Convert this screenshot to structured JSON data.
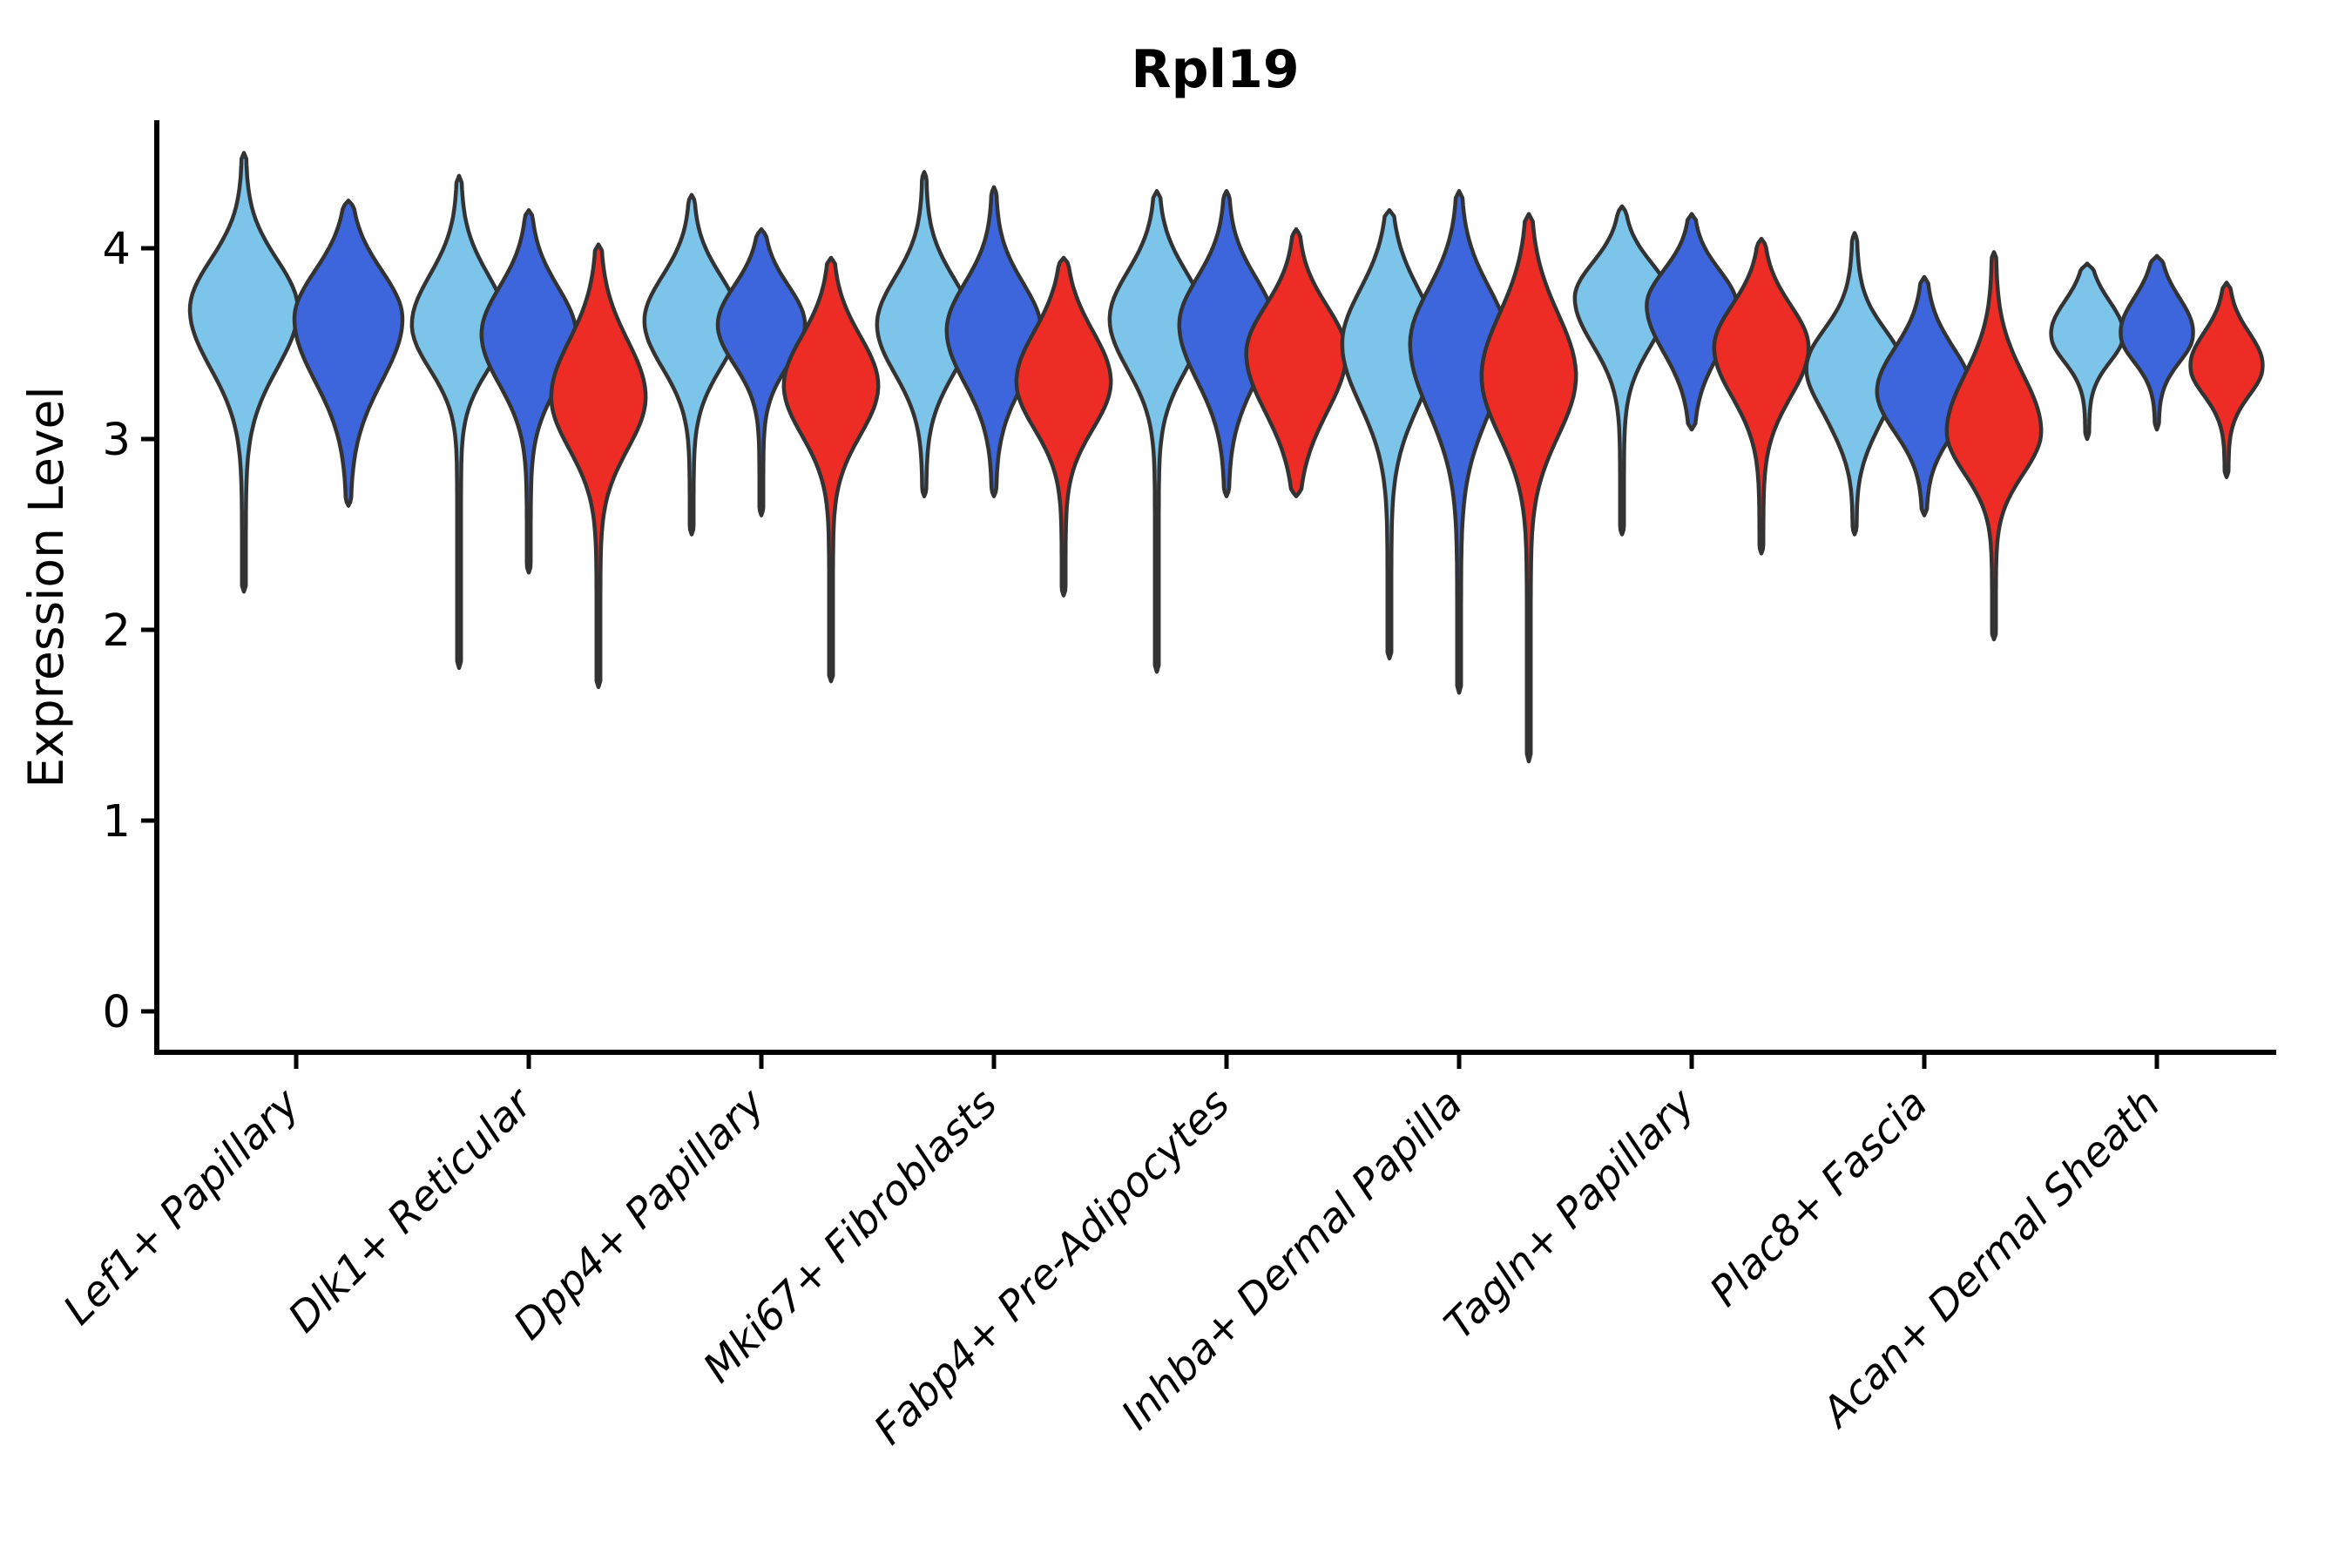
{
  "chart_data": {
    "type": "violin",
    "title": "Rpl19",
    "xlabel": "",
    "ylabel": "Expression Level",
    "yticks": [
      0,
      1,
      2,
      3,
      4
    ],
    "ylim": [
      -0.25,
      4.8
    ],
    "grid": false,
    "legend": "none",
    "background": "#ffffff",
    "palette": {
      "light_blue": "#7DC4EA",
      "dark_blue": "#3D66DC",
      "red": "#EE2C26",
      "outline": "#333333",
      "axis": "#000000"
    },
    "categories": [
      "Lef1+ Papillary",
      "Dlk1+ Reticular",
      "Dpp4+ Papillary",
      "Mki67+ Fibroblasts",
      "Fabp4+ Pre-Adipocytes",
      "Inhba+ Dermal Papilla",
      "Tagln+ Papillary",
      "Plac8+ Fascia",
      "Acan+ Dermal Sheath"
    ],
    "groups": [
      {
        "category": "Lef1+ Papillary",
        "violins": [
          {
            "color": "light_blue",
            "max": 4.5,
            "body_top": 4.1,
            "mode": 3.68,
            "body_bottom": 3.18,
            "min": 2.2,
            "width": 1.15,
            "wave": 0
          },
          {
            "color": "dark_blue",
            "max": 4.25,
            "body_top": 4.04,
            "mode": 3.63,
            "body_bottom": 3.1,
            "min": 2.65,
            "width": 1.15,
            "wave": 0
          }
        ]
      },
      {
        "category": "Dlk1+ Reticular",
        "violins": [
          {
            "color": "light_blue",
            "max": 4.38,
            "body_top": 4.02,
            "mode": 3.6,
            "body_bottom": 3.22,
            "min": 1.8,
            "width": 1.0,
            "wave": 0
          },
          {
            "color": "dark_blue",
            "max": 4.2,
            "body_top": 3.95,
            "mode": 3.55,
            "body_bottom": 3.12,
            "min": 2.3,
            "width": 1.0,
            "wave": 0
          },
          {
            "color": "red",
            "max": 4.02,
            "body_top": 3.7,
            "mode": 3.22,
            "body_bottom": 2.78,
            "min": 1.7,
            "width": 1.0,
            "wave": 0
          }
        ]
      },
      {
        "category": "Dpp4+ Papillary",
        "violins": [
          {
            "color": "light_blue",
            "max": 4.28,
            "body_top": 4.0,
            "mode": 3.62,
            "body_bottom": 3.22,
            "min": 2.5,
            "width": 1.0,
            "wave": 0
          },
          {
            "color": "dark_blue",
            "max": 4.1,
            "body_top": 3.93,
            "mode": 3.6,
            "body_bottom": 3.26,
            "min": 2.6,
            "width": 0.92,
            "wave": 0
          },
          {
            "color": "red",
            "max": 3.95,
            "body_top": 3.7,
            "mode": 3.28,
            "body_bottom": 2.86,
            "min": 1.73,
            "width": 1.0,
            "wave": 0
          }
        ]
      },
      {
        "category": "Mki67+ Fibroblasts",
        "violins": [
          {
            "color": "light_blue",
            "max": 4.4,
            "body_top": 4.0,
            "mode": 3.6,
            "body_bottom": 3.18,
            "min": 2.7,
            "width": 1.0,
            "wave": 0
          },
          {
            "color": "dark_blue",
            "max": 4.32,
            "body_top": 3.97,
            "mode": 3.57,
            "body_bottom": 3.12,
            "min": 2.7,
            "width": 1.0,
            "wave": 0
          },
          {
            "color": "red",
            "max": 3.95,
            "body_top": 3.73,
            "mode": 3.3,
            "body_bottom": 2.9,
            "min": 2.18,
            "width": 1.0,
            "wave": 0
          }
        ]
      },
      {
        "category": "Fabp4+ Pre-Adipocytes",
        "violins": [
          {
            "color": "light_blue",
            "max": 4.3,
            "body_top": 4.03,
            "mode": 3.63,
            "body_bottom": 3.2,
            "min": 1.78,
            "width": 1.0,
            "wave": 0
          },
          {
            "color": "dark_blue",
            "max": 4.3,
            "body_top": 4.0,
            "mode": 3.6,
            "body_bottom": 3.12,
            "min": 2.7,
            "width": 1.0,
            "wave": 0
          },
          {
            "color": "red",
            "max": 4.1,
            "body_top": 3.85,
            "mode": 3.45,
            "body_bottom": 2.95,
            "min": 2.7,
            "width": 1.06,
            "wave": 0
          }
        ]
      },
      {
        "category": "Inhba+ Dermal Papilla",
        "violins": [
          {
            "color": "light_blue",
            "max": 4.2,
            "body_top": 3.96,
            "mode": 3.5,
            "body_bottom": 2.98,
            "min": 1.85,
            "width": 1.0,
            "wave": 0
          },
          {
            "color": "dark_blue",
            "max": 4.3,
            "body_top": 3.97,
            "mode": 3.5,
            "body_bottom": 2.92,
            "min": 1.67,
            "width": 1.04,
            "wave": 0
          },
          {
            "color": "red",
            "max": 4.18,
            "body_top": 3.86,
            "mode": 3.33,
            "body_bottom": 2.82,
            "min": 1.31,
            "width": 1.0,
            "wave": 0
          }
        ]
      },
      {
        "category": "Tagln+ Papillary",
        "violins": [
          {
            "color": "light_blue",
            "max": 4.22,
            "body_top": 4.04,
            "mode": 3.74,
            "body_bottom": 3.34,
            "min": 2.5,
            "width": 1.0,
            "wave": 0
          },
          {
            "color": "dark_blue",
            "max": 4.18,
            "body_top": 4.0,
            "mode": 3.7,
            "body_bottom": 3.3,
            "min": 3.05,
            "width": 0.95,
            "wave": 0
          },
          {
            "color": "red",
            "max": 4.05,
            "body_top": 3.84,
            "mode": 3.48,
            "body_bottom": 3.06,
            "min": 2.4,
            "width": 1.0,
            "wave": 0
          }
        ]
      },
      {
        "category": "Plac8+ Fascia",
        "violins": [
          {
            "color": "light_blue",
            "max": 4.08,
            "body_top": 3.72,
            "mode": 3.32,
            "body_bottom": 2.95,
            "min": 2.5,
            "width": 1.0,
            "wave": 0.1
          },
          {
            "color": "dark_blue",
            "max": 3.85,
            "body_top": 3.62,
            "mode": 3.25,
            "body_bottom": 2.9,
            "min": 2.6,
            "width": 1.0,
            "wave": 0
          },
          {
            "color": "red",
            "max": 3.98,
            "body_top": 3.52,
            "mode": 3.04,
            "body_bottom": 2.68,
            "min": 1.95,
            "width": 1.0,
            "wave": 0
          }
        ]
      },
      {
        "category": "Acan+ Dermal Sheath",
        "violins": [
          {
            "color": "light_blue",
            "max": 3.92,
            "body_top": 3.82,
            "mode": 3.52,
            "body_bottom": 3.3,
            "min": 3.0,
            "width": 0.74,
            "wave": 0.12
          },
          {
            "color": "dark_blue",
            "max": 3.96,
            "body_top": 3.85,
            "mode": 3.52,
            "body_bottom": 3.3,
            "min": 3.05,
            "width": 0.74,
            "wave": 0.12
          },
          {
            "color": "red",
            "max": 3.82,
            "body_top": 3.66,
            "mode": 3.35,
            "body_bottom": 3.12,
            "min": 2.8,
            "width": 0.74,
            "wave": 0.12
          }
        ]
      }
    ]
  }
}
